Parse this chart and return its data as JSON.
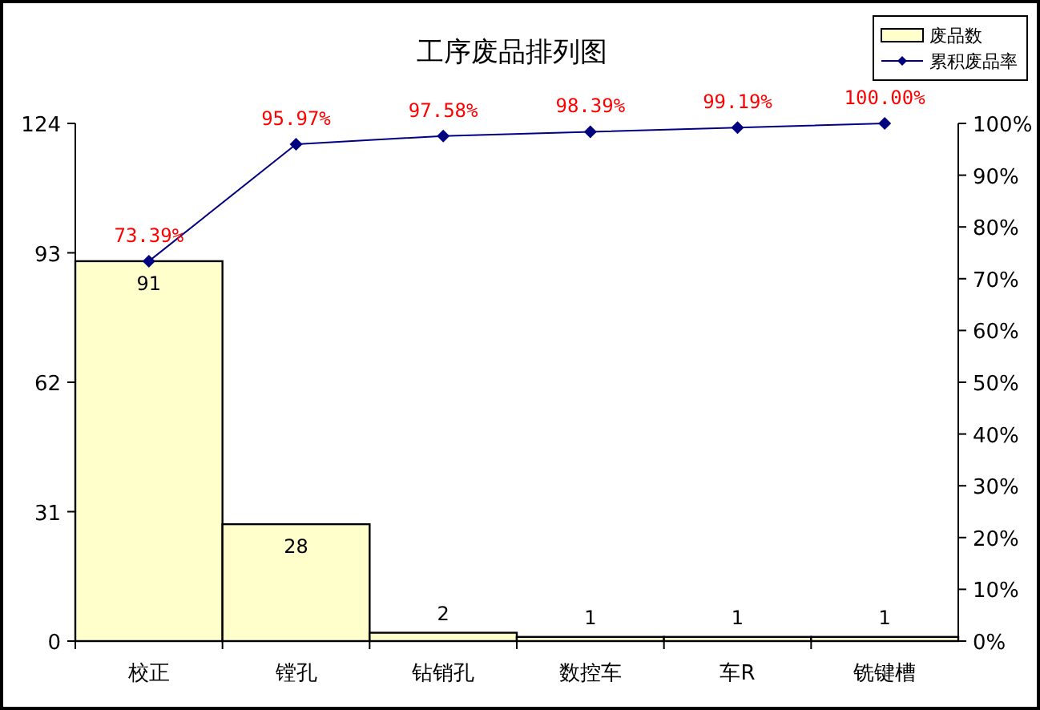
{
  "chart_data": {
    "type": "bar",
    "title": "工序废品排列图",
    "categories": [
      "校正",
      "镗孔",
      "钻销孔",
      "数控车",
      "车R",
      "铣键槽"
    ],
    "series": [
      {
        "name": "废品数",
        "color": "#ffffcc",
        "values": [
          91,
          28,
          2,
          1,
          1,
          1
        ],
        "value_labels": [
          "91",
          "28",
          "2",
          "1",
          "1",
          "1"
        ]
      },
      {
        "name": "累积废品率",
        "type": "line",
        "axis": "y2",
        "color": "#000080",
        "marker": "diamond",
        "values": [
          73.39,
          95.97,
          97.58,
          98.39,
          99.19,
          100.0
        ],
        "value_labels": [
          "73.39%",
          "95.97%",
          "97.58%",
          "98.39%",
          "99.19%",
          "100.00%"
        ]
      }
    ],
    "ylim": [
      0,
      124
    ],
    "yticks": [
      0,
      31,
      62,
      93,
      124
    ],
    "y2lim": [
      0,
      100
    ],
    "y2ticks": [
      {
        "value": 0,
        "label": "0%"
      },
      {
        "value": 10,
        "label": "10%"
      },
      {
        "value": 20,
        "label": "20%"
      },
      {
        "value": 30,
        "label": "30%"
      },
      {
        "value": 40,
        "label": "40%"
      },
      {
        "value": 50,
        "label": "50%"
      },
      {
        "value": 60,
        "label": "60%"
      },
      {
        "value": 70,
        "label": "70%"
      },
      {
        "value": 80,
        "label": "80%"
      },
      {
        "value": 90,
        "label": "90%"
      },
      {
        "value": 100,
        "label": "100%"
      }
    ],
    "grid": false,
    "legend": "top right"
  }
}
